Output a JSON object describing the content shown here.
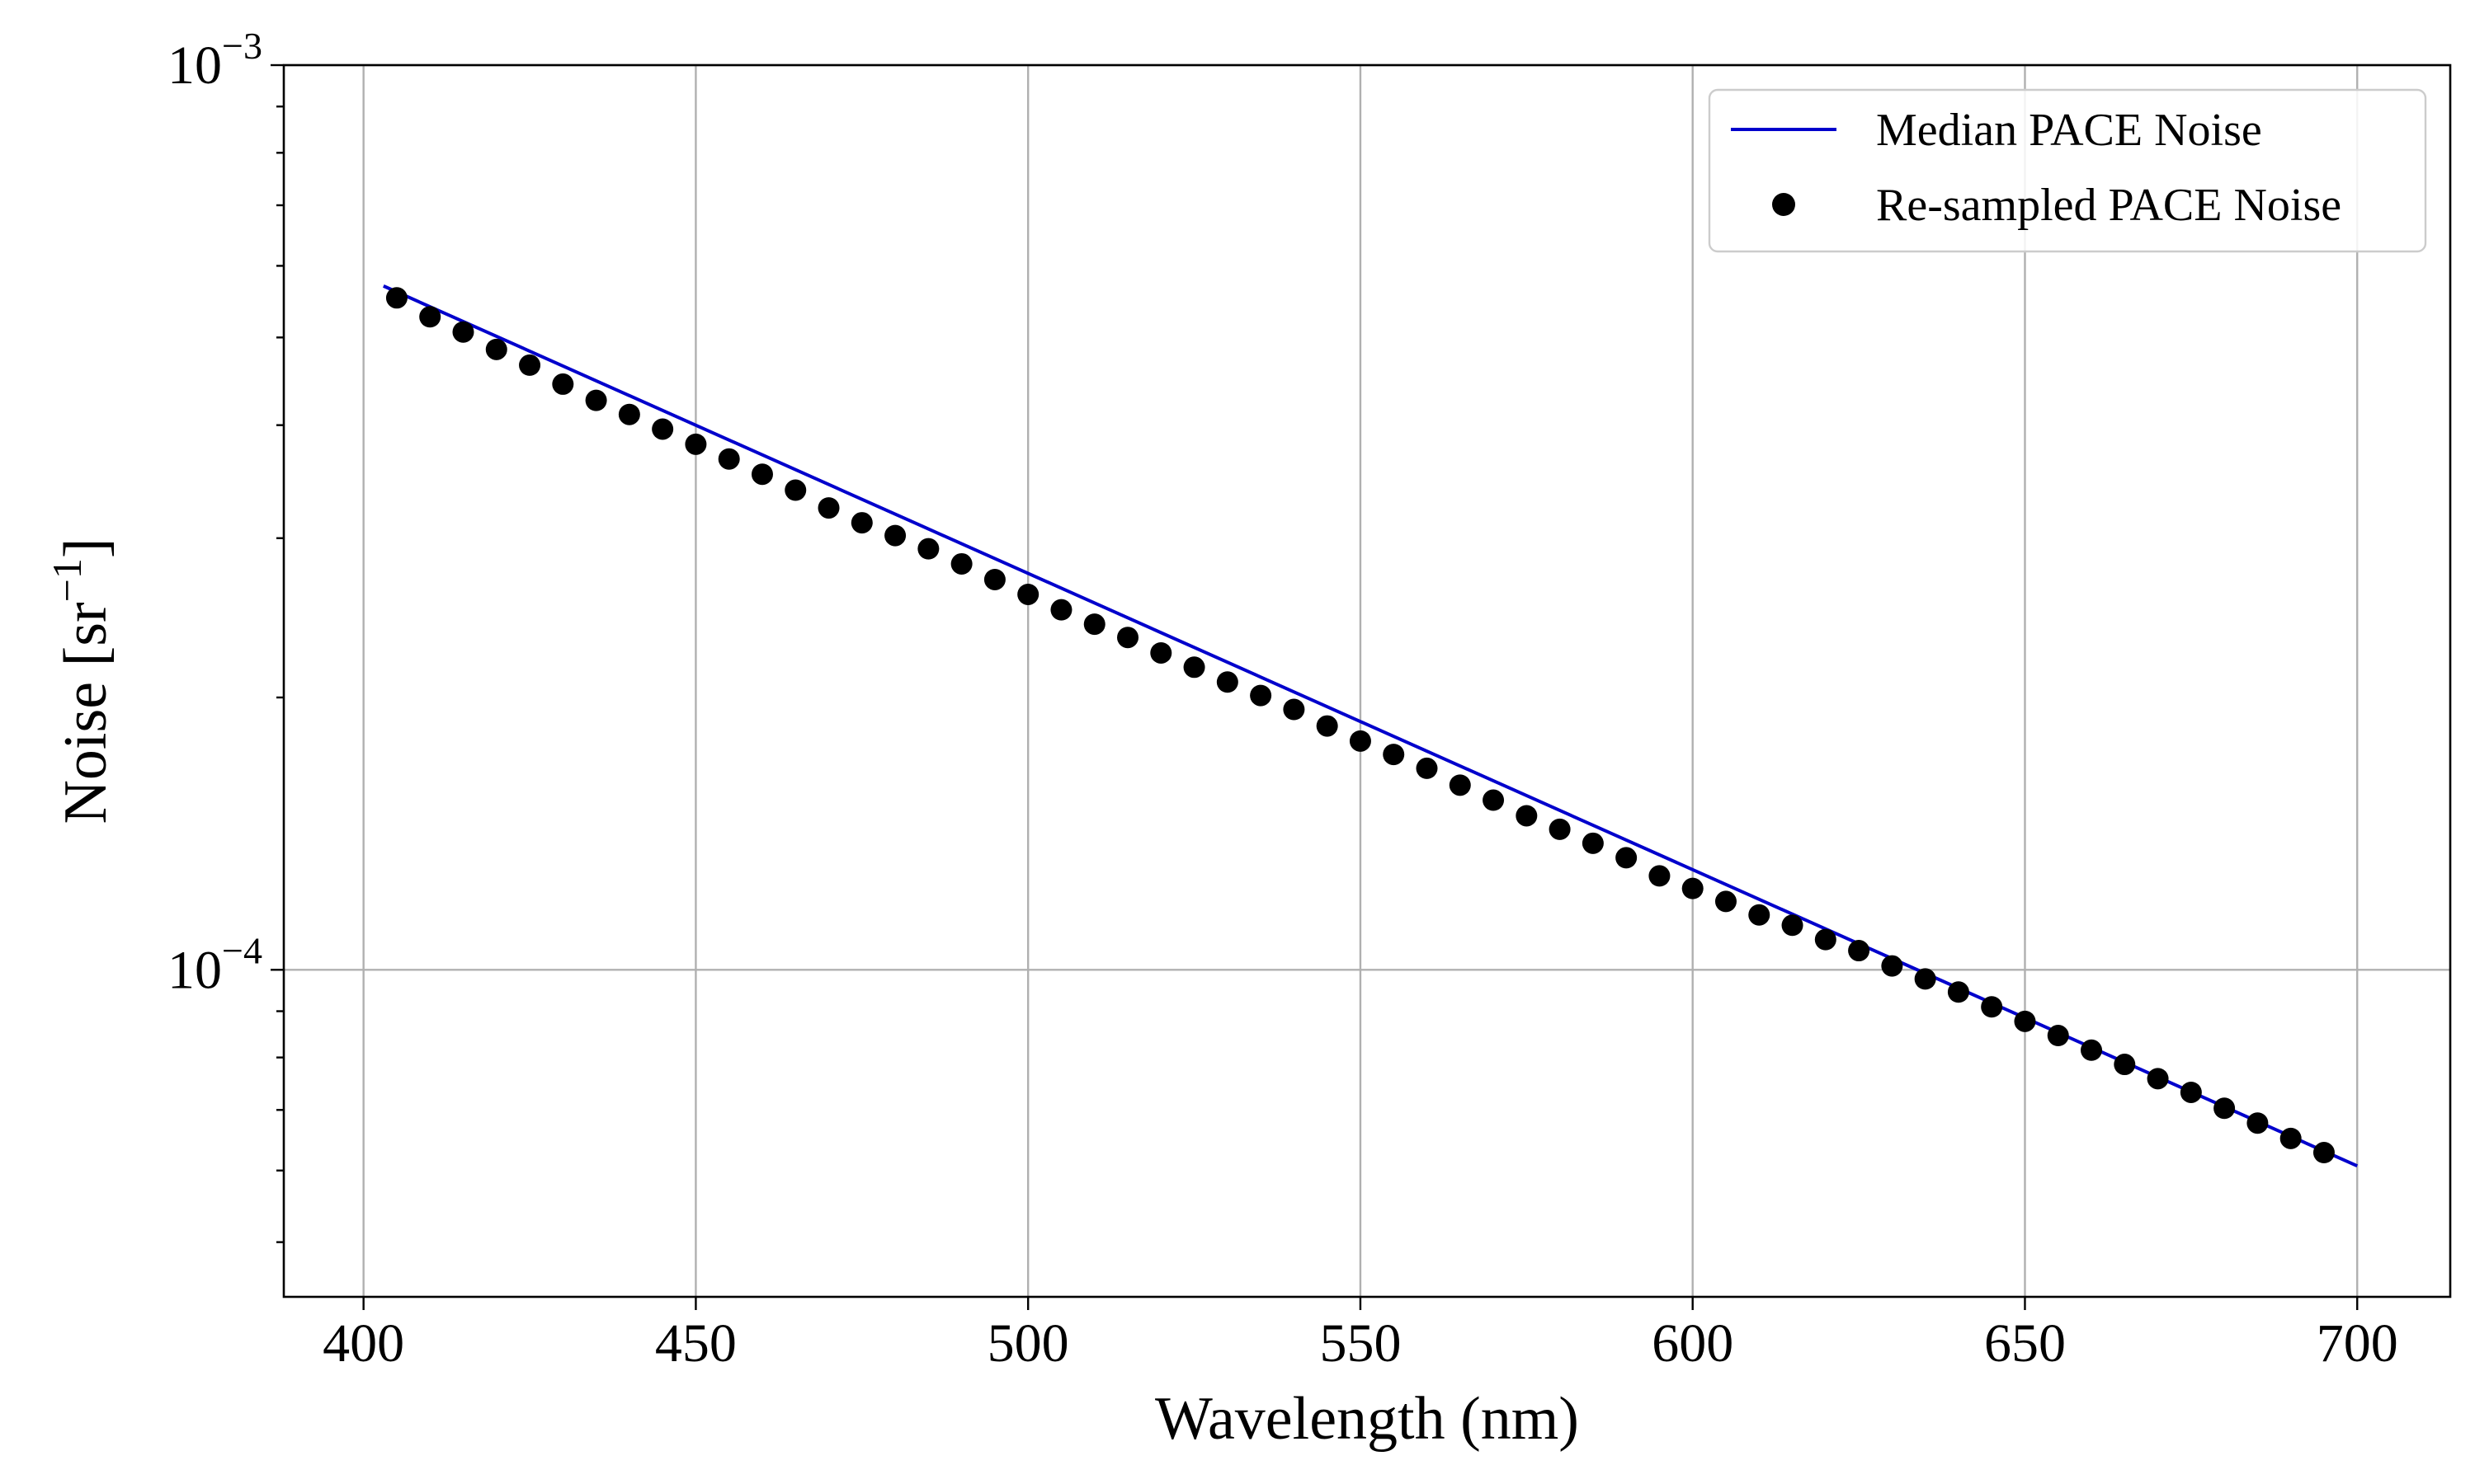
{
  "chart_data": {
    "type": "line",
    "title": "",
    "xlabel": "Wavelength (nm)",
    "ylabel_main": "Noise [sr",
    "ylabel_sup": "−1",
    "ylabel_close": "]",
    "yscale": "log",
    "xlim": [
      388,
      714
    ],
    "ylim": [
      4.35e-05,
      0.001
    ],
    "grid": true,
    "legend_position": "top-right",
    "x_ticks": [
      {
        "value": 400,
        "label": "400"
      },
      {
        "value": 450,
        "label": "450"
      },
      {
        "value": 500,
        "label": "500"
      },
      {
        "value": 550,
        "label": "550"
      },
      {
        "value": 600,
        "label": "600"
      },
      {
        "value": 650,
        "label": "650"
      },
      {
        "value": 700,
        "label": "700"
      }
    ],
    "y_ticks": [
      {
        "value": 0.001,
        "base": "10",
        "exp": "−3"
      },
      {
        "value": 0.0001,
        "base": "10",
        "exp": "−4"
      }
    ],
    "y_minor_ticks": [
      5e-05,
      6e-05,
      7e-05,
      8e-05,
      9e-05,
      0.0002,
      0.0003,
      0.0004,
      0.0005,
      0.0006,
      0.0007,
      0.0008,
      0.0009
    ],
    "series": [
      {
        "name": "Median PACE Noise",
        "style": "line",
        "color": "#0000cc",
        "x": [
          403,
          700
        ],
        "y": [
          0.00057,
          6.07e-05
        ]
      },
      {
        "name": "Re-sampled PACE Noise",
        "style": "markers",
        "color": "#000000",
        "x_start": 405,
        "x_step": 5,
        "y": [
          0.000553,
          0.000527,
          0.000507,
          0.000485,
          0.000466,
          0.000444,
          0.000426,
          0.000411,
          0.000396,
          0.000381,
          0.000367,
          0.000353,
          0.000339,
          0.000324,
          0.000312,
          0.000302,
          0.000292,
          0.000281,
          0.00027,
          0.00026,
          0.00025,
          0.000241,
          0.000233,
          0.000224,
          0.000216,
          0.000208,
          0.000201,
          0.000194,
          0.000186,
          0.000179,
          0.000173,
          0.000167,
          0.00016,
          0.000154,
          0.000148,
          0.000143,
          0.000138,
          0.000133,
          0.000127,
          0.000123,
          0.000119,
          0.000115,
          0.000112,
          0.000108,
          0.000105,
          0.000101,
          9.77e-05,
          9.45e-05,
          9.1e-05,
          8.77e-05,
          8.46e-05,
          8.15e-05,
          7.86e-05,
          7.58e-05,
          7.32e-05,
          7.03e-05,
          6.77e-05,
          6.51e-05,
          6.28e-05
        ]
      }
    ]
  }
}
